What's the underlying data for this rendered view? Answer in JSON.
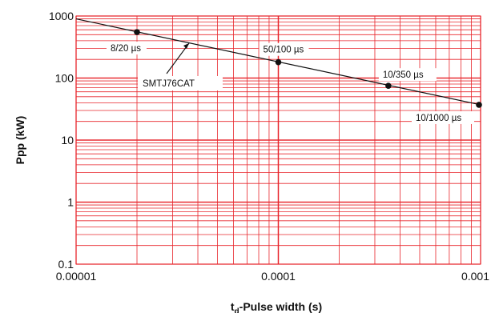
{
  "chart_data": {
    "type": "line",
    "title": "",
    "xlabel": "-Pulse width (s)",
    "xlabel_prefix": "t",
    "xlabel_subscript": "d",
    "ylabel": "Ppp (kW)",
    "xscale": "log",
    "yscale": "log",
    "xlim": [
      1e-05,
      0.001
    ],
    "ylim": [
      0.1,
      1000
    ],
    "grid": true,
    "grid_color": "#e8262c",
    "line_color": "#111111",
    "x_tick_labels": [
      "0.00001",
      "0.0001",
      "0.001"
    ],
    "x_tick_values": [
      1e-05,
      0.0001,
      0.001
    ],
    "y_tick_labels": [
      "0.1",
      "1",
      "10",
      "100",
      "1000"
    ],
    "y_tick_values": [
      0.1,
      1,
      10,
      100,
      1000
    ],
    "series": [
      {
        "name": "SMTJ76CAT",
        "x": [
          1e-05,
          0.001
        ],
        "y": [
          900,
          37
        ]
      }
    ],
    "points": [
      {
        "label": "8/20 µs",
        "x": 2e-05,
        "y": 550
      },
      {
        "label": "50/100 µs",
        "x": 0.0001,
        "y": 180
      },
      {
        "label": "10/350 µs",
        "x": 0.00035,
        "y": 75
      },
      {
        "label": "10/1000 µs",
        "x": 0.00105,
        "y": 37
      }
    ]
  }
}
